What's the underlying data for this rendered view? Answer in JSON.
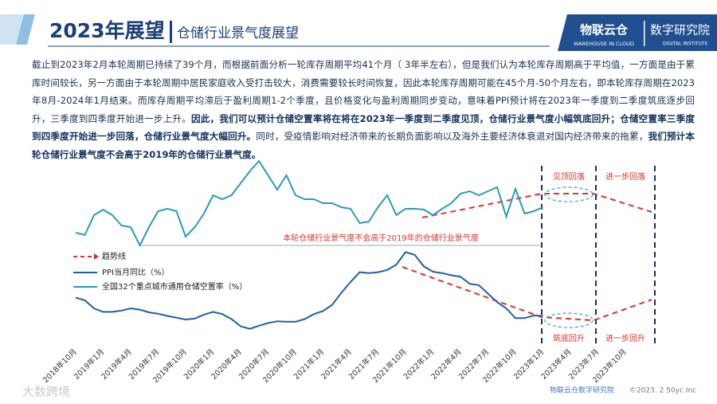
{
  "header": {
    "title": "2023年展望",
    "subtitle": "仓储行业景气度展望"
  },
  "logo": {
    "name": "物联云仓",
    "name_en": "WAREHOUSE IN CLOUD",
    "institute": "数字研究院",
    "institute_en": "DIGITAL INSTITUTE"
  },
  "body": [
    {
      "text": "截止到2023年2月本轮周期已持续了39个月，而根据前面分析一轮库存周期平均41个月（ 3年半左右），但是我们认为本轮库存周期高于平均值，一方面是由于累库时间较长，另一方面由于本轮周期中居民家庭收入受打击较大，消费需要较长时间恢复，因此本轮库存周期可能在45个月-50个月左右，即本轮库存周期在2023年8月-2024年1月结束。而库存周期平均滞后于盈利周期1-2个季度，且价格变化与盈利周期同步变动，意味着PPI预计将在2023年一季度到二季度筑底逐步回升，三季度到四季度开始进一步上升。",
      "bold": false
    },
    {
      "text": "因此，我们可以预计仓储空置率将在将在2023年一季度到二季度见顶，仓储行业景气度小幅筑底回升；仓储空置率三季度到四季度开始进一步回落，仓储行业景气度大幅回升。",
      "bold": true
    },
    {
      "text": "同时，受疫情影响对经济带来的长期负面影响以及海外主要经济体衰退对国内经济带来的拖累，",
      "bold": false
    },
    {
      "text": "我们预计本轮仓储行业景气度不会高于2019年的仓储行业景气度。",
      "bold": true
    }
  ],
  "chart_data": {
    "type": "line",
    "categories": [
      "2018年10月",
      null,
      null,
      "2019年1月",
      null,
      null,
      "2019年4月",
      null,
      null,
      "2019年7月",
      null,
      null,
      "2019年10月",
      null,
      null,
      "2020年1月",
      null,
      null,
      "2020年4月",
      null,
      null,
      "2020年7月",
      null,
      null,
      "2020年10月",
      null,
      null,
      "2021年1月",
      null,
      null,
      "2021年4月",
      null,
      null,
      "2021年7月",
      null,
      null,
      "2021年10月",
      null,
      null,
      "2022年1月",
      null,
      null,
      "2022年4月",
      null,
      null,
      "2022年7月",
      null,
      null,
      "2022年10月",
      null,
      null,
      "2023年1月",
      null,
      null,
      "2023年4月",
      null,
      null,
      "2023年7月",
      null,
      null,
      "2023年10月"
    ],
    "series": [
      {
        "name": "PPI当月同比（%）",
        "color": "#1f5fa6",
        "axis": "y2",
        "values": [
          3.3,
          2.7,
          0.9,
          0.1,
          0.1,
          0.4,
          0.9,
          0.6,
          0,
          -0.3,
          -0.8,
          -1.2,
          -1.6,
          -1.4,
          -0.5,
          0.1,
          -0.4,
          -1.5,
          -3.1,
          -3.7,
          -3.0,
          -2.4,
          -2.0,
          -2.1,
          -2.1,
          -1.5,
          -0.4,
          0.3,
          1.7,
          4.4,
          6.8,
          9.0,
          8.8,
          9.0,
          9.5,
          10.7,
          13.5,
          12.9,
          10.3,
          9.1,
          8.8,
          8.3,
          8.0,
          6.4,
          6.1,
          4.2,
          2.3,
          0.9,
          -1.3,
          -1.3,
          -0.7,
          -0.8,
          null,
          null,
          null,
          null,
          null,
          null,
          null,
          null,
          null
        ]
      },
      {
        "name": "全国32个重点城市通用仓储空置率（%）",
        "color": "#2a9bb5",
        "values": [
          2.8,
          2.5,
          5.0,
          5.7,
          5.0,
          3.7,
          3.5,
          1.2,
          3.5,
          5.5,
          5.8,
          5.5,
          2.3,
          3.5,
          5.2,
          7.5,
          7.0,
          7.5,
          9.0,
          10.5,
          11.8,
          10.0,
          8.2,
          10.0,
          7.5,
          7.0,
          7.0,
          6.5,
          6.5,
          6.0,
          5.8,
          4.0,
          4.2,
          6.0,
          7.5,
          5.0,
          5.8,
          5.8,
          5.7,
          5.0,
          5.8,
          6.5,
          7.7,
          8.0,
          7.5,
          8.0,
          8.5,
          4.8,
          8.3,
          5.2,
          5.5,
          6.0,
          null,
          null,
          null,
          null,
          null,
          null,
          null,
          null,
          null
        ]
      }
    ],
    "ylim": [
      0,
      12
    ],
    "y2lim": [
      -5,
      15
    ],
    "legend_trend": "趋势线",
    "annotations": [
      "本轮仓储行业景气度不会高于2019年的仓储行业景气度",
      "见顶回落",
      "进一步回落",
      "筑底回升",
      "进一步回升"
    ]
  },
  "footer": {
    "source": "物联云仓数字研究院",
    "copyright": "©2023. 2 50yc Inc",
    "watermark": "大数跨境"
  }
}
